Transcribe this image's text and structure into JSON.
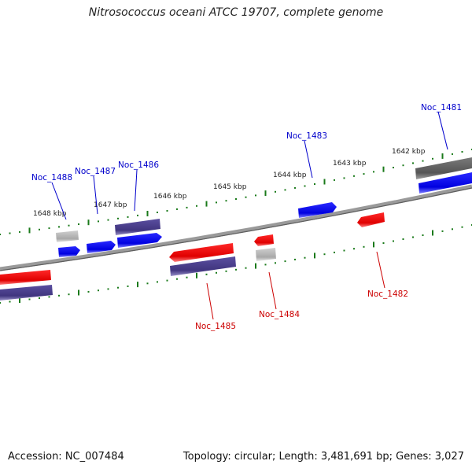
{
  "title": "Nitrosococcus oceani ATCC 19707, complete genome",
  "accession": "Accession: NC_007484",
  "summary": "Topology: circular; Length: 3,481,691 bp; Genes: 3,027",
  "colors": {
    "forward_cds": "#0000ee",
    "reverse_cds": "#ee0000",
    "gene_forward": "#4b3f8f",
    "gene_neutral": "#b0b0b0",
    "label_forward": "#0000cc",
    "label_reverse": "#cc0000",
    "tick": "#1a7a1a",
    "backbone": "#888888"
  },
  "kbp_labels": [
    "1648 kbp",
    "1647 kbp",
    "1646 kbp",
    "1645 kbp",
    "1644 kbp",
    "1643 kbp",
    "1642 kbp"
  ],
  "gene_labels": {
    "forward": [
      "Noc_1488",
      "Noc_1487",
      "Noc_1486",
      "Noc_1483",
      "Noc_1481"
    ],
    "reverse": [
      "Noc_1485",
      "Noc_1484",
      "Noc_1482"
    ]
  }
}
